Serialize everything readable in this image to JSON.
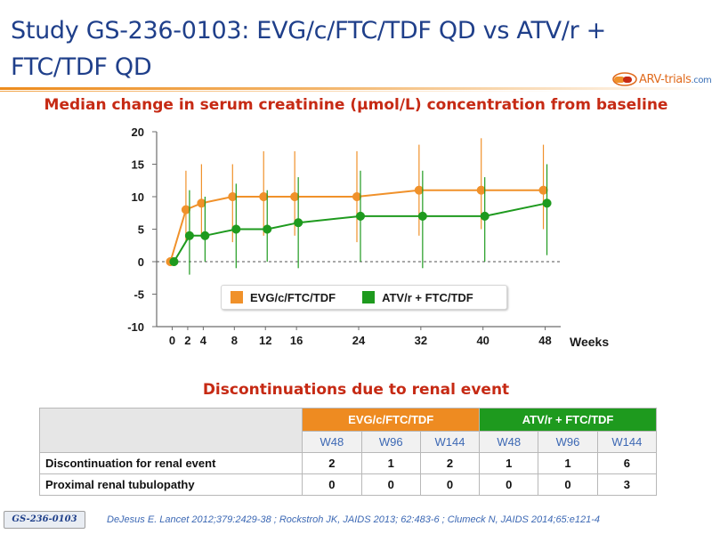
{
  "slide": {
    "title": "Study GS-236-0103: EVG/c/FTC/TDF QD vs ATV/r + FTC/TDF QD",
    "logo": {
      "prefix": "ARV",
      "middle": "-trials",
      "suffix": ".com"
    }
  },
  "chart_data": {
    "type": "line",
    "title": "Median change in serum creatinine (μmol/L) concentration from baseline",
    "xlabel": "Weeks",
    "ylabel": "",
    "x": [
      0,
      2,
      4,
      8,
      12,
      16,
      24,
      32,
      40,
      48
    ],
    "x_tick_labels": [
      "0",
      "2",
      "4",
      "8",
      "12",
      "16",
      "24",
      "32",
      "40",
      "48"
    ],
    "ylim": [
      -10,
      20
    ],
    "y_ticks": [
      20,
      15,
      10,
      5,
      0,
      -5,
      -10
    ],
    "reference_line_y": 0,
    "legend_position": "bottom-center",
    "series": [
      {
        "name": "EVG/c/FTC/TDF",
        "color": "#F0912A",
        "values": [
          0,
          8,
          9,
          10,
          10,
          10,
          10,
          11,
          11,
          11
        ],
        "error_low": [
          0,
          3,
          4,
          3,
          4,
          4,
          3,
          4,
          5,
          5
        ],
        "error_high": [
          0,
          14,
          15,
          15,
          17,
          17,
          17,
          18,
          19,
          18
        ]
      },
      {
        "name": "ATV/r + FTC/TDF",
        "color": "#1E9A1E",
        "values": [
          0,
          4,
          4,
          5,
          5,
          6,
          7,
          7,
          7,
          9
        ],
        "error_low": [
          0,
          -2,
          0,
          -1,
          0,
          -1,
          0,
          -1,
          0,
          1
        ],
        "error_high": [
          0,
          11,
          10,
          12,
          11,
          13,
          14,
          14,
          13,
          15
        ]
      }
    ]
  },
  "table": {
    "title": "Discontinuations due to renal event",
    "groups": [
      {
        "label": "EVG/c/FTC/TDF",
        "color": "#EE8B21"
      },
      {
        "label": "ATV/r + FTC/TDF",
        "color": "#1E9A1E"
      }
    ],
    "weeks": [
      "W48",
      "W96",
      "W144",
      "W48",
      "W96",
      "W144"
    ],
    "rows": [
      {
        "label": "Discontinuation for renal event",
        "values": [
          "2",
          "1",
          "2",
          "1",
          "1",
          "6"
        ]
      },
      {
        "label": "Proximal renal tubulopathy",
        "values": [
          "0",
          "0",
          "0",
          "0",
          "0",
          "3"
        ]
      }
    ]
  },
  "footer": {
    "study_id": "GS-236-0103",
    "references": "DeJesus E. Lancet 2012;379:2429-38 ; Rockstroh JK, JAIDS 2013; 62:483-6 ; Clumeck N, JAIDS 2014;65:e121-4"
  }
}
